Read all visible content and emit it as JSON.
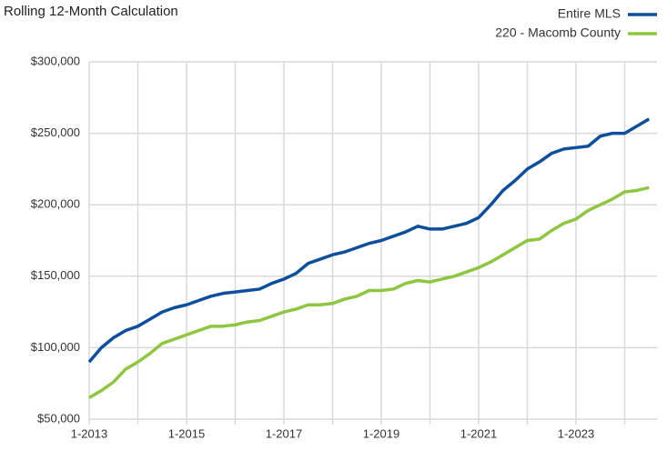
{
  "chart_data": {
    "type": "line",
    "title": "Rolling 12-Month Calculation",
    "categories": [
      "1-2013",
      null,
      null,
      null,
      null,
      null,
      null,
      null,
      "1-2015",
      null,
      null,
      null,
      null,
      null,
      null,
      null,
      "1-2017",
      null,
      null,
      null,
      null,
      null,
      null,
      null,
      "1-2019",
      null,
      null,
      null,
      null,
      null,
      null,
      null,
      "1-2021",
      null,
      null,
      null,
      null,
      null,
      null,
      null,
      "1-2023",
      null,
      null,
      null,
      null,
      null,
      null
    ],
    "series": [
      {
        "name": "Entire MLS",
        "color": "#0d4f9c",
        "values": [
          90000,
          100000,
          107000,
          112000,
          115000,
          120000,
          125000,
          128000,
          130000,
          133000,
          136000,
          138000,
          139000,
          140000,
          141000,
          145000,
          148000,
          152000,
          159000,
          162000,
          165000,
          167000,
          170000,
          173000,
          175000,
          178000,
          181000,
          185000,
          183000,
          183000,
          185000,
          187000,
          191000,
          200000,
          210000,
          217000,
          225000,
          230000,
          236000,
          239000,
          240000,
          241000,
          248000,
          250000,
          250000,
          255000,
          260000
        ]
      },
      {
        "name": "220 - Macomb County",
        "color": "#8dc63f",
        "values": [
          65000,
          70000,
          76000,
          85000,
          90000,
          96000,
          103000,
          106000,
          109000,
          112000,
          115000,
          115000,
          116000,
          118000,
          119000,
          122000,
          125000,
          127000,
          130000,
          130000,
          131000,
          134000,
          136000,
          140000,
          140000,
          141000,
          145000,
          147000,
          146000,
          148000,
          150000,
          153000,
          156000,
          160000,
          165000,
          170000,
          175000,
          176000,
          182000,
          187000,
          190000,
          196000,
          200000,
          204000,
          209000,
          210000,
          212000
        ]
      }
    ],
    "ylim": [
      50000,
      300000
    ],
    "yticks": [
      {
        "value": 50000,
        "label": "$50,000"
      },
      {
        "value": 100000,
        "label": "$100,000"
      },
      {
        "value": 150000,
        "label": "$150,000"
      },
      {
        "value": 200000,
        "label": "$200,000"
      },
      {
        "value": 250000,
        "label": "$250,000"
      },
      {
        "value": 300000,
        "label": "$300,000"
      }
    ],
    "grid": true
  }
}
